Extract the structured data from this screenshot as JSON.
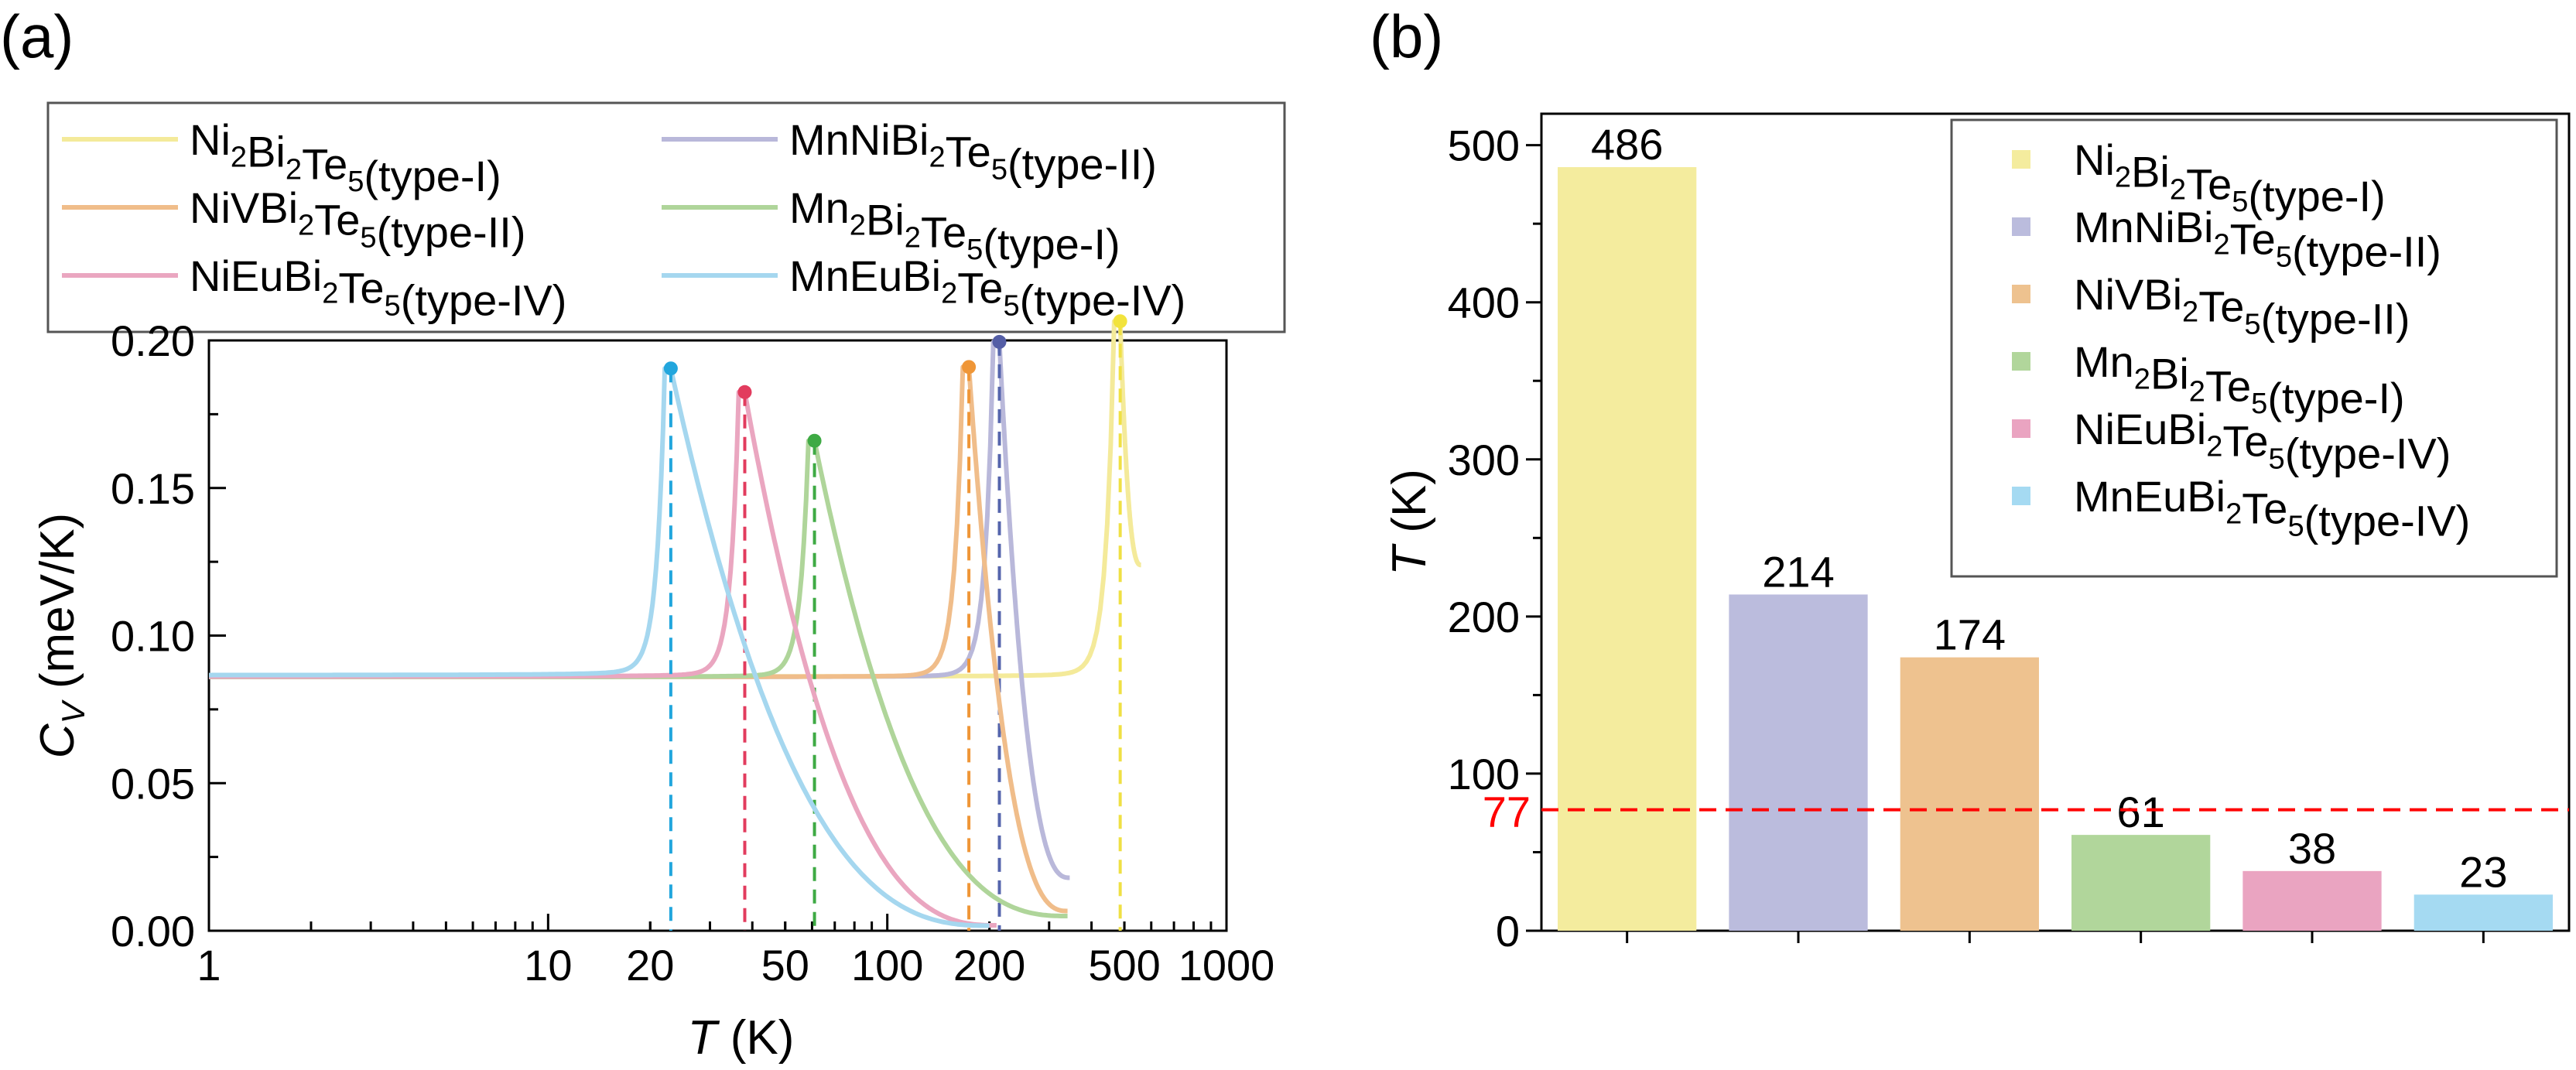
{
  "panels": {
    "a_label": "(a)",
    "b_label": "(b)"
  },
  "colors": {
    "Ni2Bi2Te5": {
      "line": "#f4ea9a",
      "bar": "#f4ec9e",
      "peak": "#f2e33c",
      "dash": "#efe044"
    },
    "MnNiBi2Te5": {
      "line": "#b9b8da",
      "bar": "#bbbcdd",
      "peak": "#545ea6",
      "dash": "#5565ac"
    },
    "NiVBi2Te5": {
      "line": "#f0bd8a",
      "bar": "#eec28f",
      "peak": "#ef9637",
      "dash": "#ef9637"
    },
    "Mn2Bi2Te5": {
      "line": "#afd59a",
      "bar": "#b1d69b",
      "peak": "#3eaa44",
      "dash": "#3eaa44"
    },
    "NiEuBi2Te5": {
      "line": "#eaa6c0",
      "bar": "#eaa4c1",
      "peak": "#e23c5e",
      "dash": "#e23c5e"
    },
    "MnEuBi2Te5": {
      "line": "#a5d7ef",
      "bar": "#a5daf2",
      "peak": "#22a6dd",
      "dash": "#22a6dd"
    },
    "reference_line": "#ff0000"
  },
  "chart_data": [
    {
      "id": "a",
      "type": "line",
      "xscale": "log",
      "xlabel": "T (K)",
      "xlabel_italic": "T",
      "xlabel_unit": "(K)",
      "ylabel": "C_V (meV/K)",
      "ylabel_base": "C",
      "ylabel_sub": "V",
      "ylabel_unit": "(meV/K)",
      "xlim": [
        1,
        1000
      ],
      "ylim": [
        0,
        0.2
      ],
      "xticks": [
        1,
        10,
        20,
        50,
        100,
        200,
        500,
        1000
      ],
      "xtick_labels": [
        "1",
        "10",
        "20",
        "50",
        "100",
        "200",
        "500",
        "1000"
      ],
      "yticks": [
        0,
        0.05,
        0.1,
        0.15,
        0.2
      ],
      "ytick_labels": [
        "0.00",
        "0.05",
        "0.10",
        "0.15",
        "0.20"
      ],
      "legend": {
        "placement": "top",
        "columns": 2
      },
      "series": [
        {
          "key": "Ni2Bi2Te5",
          "label": "Ni2Bi2Te5(type-I)",
          "parts": [
            [
              "Ni",
              ""
            ],
            [
              "Bi",
              "2"
            ],
            [
              "Te",
              "5"
            ]
          ],
          "parts_fix": "Ni2",
          "suffix": "(type-I)",
          "base": 0.0858,
          "a": 0.00032,
          "tc": 486,
          "peak": 0.2065,
          "tend": 560,
          "ratio": 0.6
        },
        {
          "key": "MnNiBi2Te5",
          "label": "MnNiBi2Te5(type-II)",
          "suffix": "(type-II)",
          "base": 0.0858,
          "a": 0.0002,
          "tc": 214,
          "peak": 0.1995,
          "tend": 345,
          "ratio": 0.09
        },
        {
          "key": "NiVBi2Te5",
          "label": "NiVBi2Te5(type-II)",
          "suffix": "(type-II)",
          "base": 0.0858,
          "a": 0.0002,
          "tc": 174,
          "peak": 0.191,
          "tend": 340,
          "ratio": 0.035
        },
        {
          "key": "Mn2Bi2Te5",
          "label": "Mn2Bi2Te5(type-I)",
          "suffix": "(type-I)",
          "base": 0.0858,
          "a": 0.0002,
          "tc": 61,
          "peak": 0.166,
          "tend": 340,
          "ratio": 0.03
        },
        {
          "key": "NiEuBi2Te5",
          "label": "NiEuBi2Te5(type-IV)",
          "suffix": "(type-IV)",
          "base": 0.0858,
          "a": 0.0003,
          "tc": 38,
          "peak": 0.1825,
          "tend": 210,
          "ratio": 0.01
        },
        {
          "key": "MnEuBi2Te5",
          "label": "MnEuBi2Te5(type-IV)",
          "suffix": "(type-IV)",
          "base": 0.0862,
          "a": 0.0004,
          "tc": 23,
          "peak": 0.1905,
          "tend": 200,
          "ratio": 0.009
        }
      ]
    },
    {
      "id": "b",
      "type": "bar",
      "ylabel": "T (K)",
      "ylabel_italic": "T",
      "ylabel_unit": "(K)",
      "ylim": [
        0,
        520
      ],
      "yticks": [
        0,
        100,
        200,
        300,
        400,
        500
      ],
      "ytick_labels": [
        "0",
        "100",
        "200",
        "300",
        "400",
        "500"
      ],
      "reference_line": {
        "value": 77,
        "label": "77"
      },
      "legend": {
        "placement": "top-right"
      },
      "categories": [
        "Ni2Bi2Te5(type-I)",
        "MnNiBi2Te5(type-II)",
        "NiVBi2Te5(type-II)",
        "Mn2Bi2Te5(type-I)",
        "NiEuBi2Te5(type-IV)",
        "MnEuBi2Te5(type-IV)"
      ],
      "keys": [
        "Ni2Bi2Te5",
        "MnNiBi2Te5",
        "NiVBi2Te5",
        "Mn2Bi2Te5",
        "NiEuBi2Te5",
        "MnEuBi2Te5"
      ],
      "values": [
        486,
        214,
        174,
        61,
        38,
        23
      ],
      "value_labels": [
        "486",
        "214",
        "174",
        "61",
        "38",
        "23"
      ]
    }
  ],
  "formula_parts": {
    "Ni2Bi2Te5": [
      [
        "Ni",
        "2"
      ],
      [
        "Bi",
        "2"
      ],
      [
        "Te",
        "5"
      ]
    ],
    "MnNiBi2Te5": [
      [
        "MnNi",
        ""
      ],
      [
        "Bi",
        "2"
      ],
      [
        "Te",
        "5"
      ]
    ],
    "NiVBi2Te5": [
      [
        "NiV",
        ""
      ],
      [
        "Bi",
        "2"
      ],
      [
        "Te",
        "5"
      ]
    ],
    "Mn2Bi2Te5": [
      [
        "Mn",
        "2"
      ],
      [
        "Bi",
        "2"
      ],
      [
        "Te",
        "5"
      ]
    ],
    "NiEuBi2Te5": [
      [
        "NiEu",
        ""
      ],
      [
        "Bi",
        "2"
      ],
      [
        "Te",
        "5"
      ]
    ],
    "MnEuBi2Te5": [
      [
        "MnEu",
        ""
      ],
      [
        "Bi",
        "2"
      ],
      [
        "Te",
        "5"
      ]
    ]
  }
}
